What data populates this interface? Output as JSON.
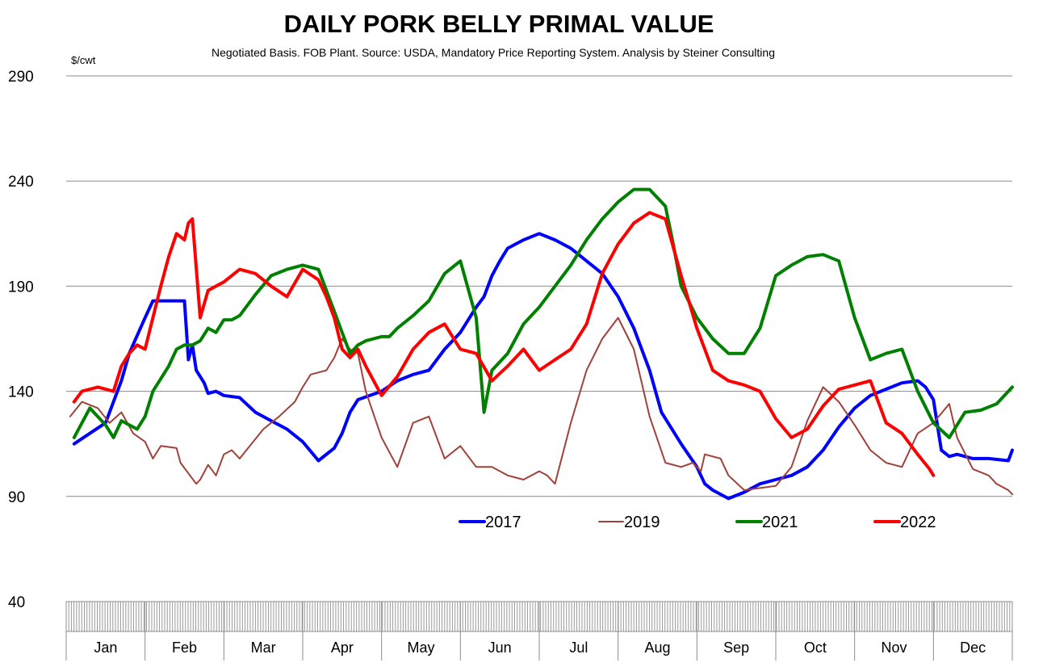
{
  "chart_data": {
    "type": "line",
    "title": "DAILY PORK BELLY PRIMAL VALUE",
    "subtitle": "Negotiated Basis.  FOB Plant.  Source: USDA, Mandatory Price Reporting System.  Analysis by Steiner Consulting",
    "ylabel": "$/cwt",
    "ylim": [
      40,
      290
    ],
    "yticks": [
      40,
      90,
      140,
      190,
      240,
      290
    ],
    "xlim": [
      0,
      12
    ],
    "months": [
      "Jan",
      "Feb",
      "Mar",
      "Apr",
      "May",
      "Jun",
      "Jul",
      "Aug",
      "Sep",
      "Oct",
      "Nov",
      "Dec"
    ],
    "legend_position": "bottom-right, inside plot",
    "series": [
      {
        "name": "2017",
        "color": "#0000ff",
        "width": 4,
        "x": [
          0.1,
          0.3,
          0.5,
          0.6,
          0.7,
          0.8,
          1.0,
          1.1,
          1.3,
          1.5,
          1.55,
          1.6,
          1.65,
          1.75,
          1.8,
          1.9,
          2.0,
          2.2,
          2.4,
          2.6,
          2.8,
          3.0,
          3.2,
          3.4,
          3.5,
          3.6,
          3.7,
          4.0,
          4.2,
          4.4,
          4.6,
          4.8,
          5.0,
          5.2,
          5.3,
          5.4,
          5.5,
          5.6,
          5.8,
          6.0,
          6.2,
          6.4,
          6.6,
          6.8,
          7.0,
          7.2,
          7.4,
          7.55,
          7.65,
          7.8,
          8.0,
          8.1,
          8.2,
          8.4,
          8.6,
          8.8,
          9.0,
          9.2,
          9.4,
          9.6,
          9.8,
          10.0,
          10.2,
          10.4,
          10.6,
          10.8,
          10.9,
          11.0,
          11.1,
          11.2,
          11.3,
          11.5,
          11.7,
          11.95,
          12.0
        ],
        "y": [
          115,
          120,
          125,
          135,
          145,
          158,
          175,
          183,
          183,
          183,
          155,
          162,
          150,
          144,
          139,
          140,
          138,
          137,
          130,
          126,
          122,
          116,
          107,
          113,
          120,
          130,
          136,
          140,
          145,
          148,
          150,
          160,
          168,
          180,
          185,
          195,
          202,
          208,
          212,
          215,
          212,
          208,
          202,
          196,
          185,
          170,
          150,
          130,
          124,
          115,
          104,
          96,
          93,
          89,
          92,
          96,
          98,
          100,
          104,
          112,
          123,
          132,
          138,
          141,
          144,
          145,
          142,
          136,
          112,
          109,
          110,
          108,
          108,
          107,
          112
        ]
      },
      {
        "name": "2019",
        "color": "#a0413a",
        "width": 2,
        "x": [
          0.05,
          0.2,
          0.4,
          0.55,
          0.7,
          0.85,
          1.0,
          1.1,
          1.2,
          1.4,
          1.45,
          1.65,
          1.7,
          1.8,
          1.9,
          2.0,
          2.1,
          2.2,
          2.5,
          2.7,
          2.9,
          3.0,
          3.1,
          3.3,
          3.4,
          3.5,
          3.6,
          3.7,
          3.8,
          4.0,
          4.2,
          4.4,
          4.6,
          4.8,
          5.0,
          5.2,
          5.4,
          5.6,
          5.8,
          6.0,
          6.1,
          6.2,
          6.4,
          6.6,
          6.8,
          7.0,
          7.2,
          7.4,
          7.6,
          7.8,
          7.95,
          8.05,
          8.1,
          8.3,
          8.4,
          8.6,
          8.8,
          9.0,
          9.2,
          9.4,
          9.6,
          9.8,
          10.0,
          10.2,
          10.4,
          10.6,
          10.7,
          10.8,
          11.0,
          11.2,
          11.3,
          11.5,
          11.7,
          11.8,
          11.95,
          12.0
        ],
        "y": [
          128,
          135,
          132,
          125,
          130,
          120,
          116,
          108,
          114,
          113,
          106,
          96,
          98,
          105,
          100,
          110,
          112,
          108,
          122,
          128,
          135,
          142,
          148,
          150,
          156,
          165,
          160,
          158,
          140,
          118,
          104,
          125,
          128,
          108,
          114,
          104,
          104,
          100,
          98,
          102,
          100,
          96,
          125,
          150,
          165,
          175,
          160,
          128,
          106,
          104,
          106,
          102,
          110,
          108,
          100,
          93,
          94,
          95,
          104,
          126,
          142,
          135,
          124,
          112,
          106,
          104,
          112,
          120,
          125,
          134,
          118,
          103,
          100,
          96,
          93,
          91
        ]
      },
      {
        "name": "2021",
        "color": "#008000",
        "width": 4,
        "x": [
          0.1,
          0.3,
          0.5,
          0.6,
          0.7,
          0.9,
          1.0,
          1.1,
          1.3,
          1.4,
          1.5,
          1.6,
          1.7,
          1.8,
          1.9,
          2.0,
          2.1,
          2.2,
          2.4,
          2.6,
          2.8,
          3.0,
          3.2,
          3.3,
          3.4,
          3.5,
          3.6,
          3.7,
          3.8,
          4.0,
          4.1,
          4.2,
          4.4,
          4.6,
          4.8,
          5.0,
          5.2,
          5.3,
          5.4,
          5.6,
          5.8,
          6.0,
          6.2,
          6.4,
          6.6,
          6.8,
          7.0,
          7.2,
          7.4,
          7.6,
          7.7,
          7.8,
          8.0,
          8.2,
          8.4,
          8.6,
          8.8,
          9.0,
          9.2,
          9.4,
          9.6,
          9.8,
          10.0,
          10.2,
          10.4,
          10.6,
          10.8,
          11.0,
          11.2,
          11.4,
          11.6,
          11.8,
          12.0
        ],
        "y": [
          118,
          132,
          124,
          118,
          126,
          122,
          128,
          140,
          152,
          160,
          162,
          162,
          164,
          170,
          168,
          174,
          174,
          176,
          186,
          195,
          198,
          200,
          198,
          188,
          178,
          168,
          158,
          162,
          164,
          166,
          166,
          170,
          176,
          183,
          196,
          202,
          175,
          130,
          150,
          158,
          172,
          180,
          190,
          200,
          212,
          222,
          230,
          236,
          236,
          228,
          210,
          190,
          175,
          165,
          158,
          158,
          170,
          195,
          200,
          204,
          205,
          202,
          175,
          155,
          158,
          160,
          140,
          125,
          118,
          130,
          131,
          134,
          142
        ]
      },
      {
        "name": "2022",
        "color": "#ff0000",
        "width": 4,
        "x": [
          0.1,
          0.2,
          0.4,
          0.6,
          0.7,
          0.8,
          0.9,
          1.0,
          1.1,
          1.2,
          1.3,
          1.4,
          1.5,
          1.55,
          1.6,
          1.7,
          1.8,
          2.0,
          2.2,
          2.4,
          2.6,
          2.8,
          3.0,
          3.2,
          3.3,
          3.4,
          3.5,
          3.6,
          3.7,
          3.8,
          4.0,
          4.2,
          4.4,
          4.6,
          4.8,
          5.0,
          5.2,
          5.4,
          5.6,
          5.8,
          6.0,
          6.2,
          6.4,
          6.6,
          6.8,
          7.0,
          7.2,
          7.4,
          7.6,
          7.8,
          8.0,
          8.2,
          8.4,
          8.6,
          8.8,
          9.0,
          9.2,
          9.4,
          9.6,
          9.8,
          10.0,
          10.2,
          10.4,
          10.6,
          10.8,
          10.95,
          11.0
        ],
        "y": [
          135,
          140,
          142,
          140,
          152,
          158,
          162,
          160,
          175,
          190,
          204,
          215,
          212,
          220,
          222,
          175,
          188,
          192,
          198,
          196,
          190,
          185,
          198,
          193,
          185,
          175,
          160,
          156,
          160,
          152,
          138,
          147,
          160,
          168,
          172,
          160,
          158,
          145,
          152,
          160,
          150,
          155,
          160,
          172,
          196,
          210,
          220,
          225,
          222,
          195,
          170,
          150,
          145,
          143,
          140,
          127,
          118,
          122,
          133,
          141,
          143,
          145,
          125,
          120,
          110,
          103,
          100
        ]
      }
    ]
  }
}
